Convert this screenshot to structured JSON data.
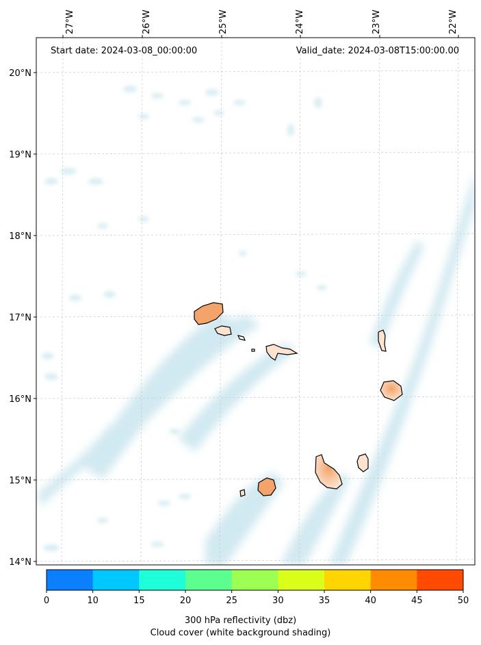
{
  "map": {
    "start_date": "Start date: 2024-03-08_00:00:00",
    "valid_date": "Valid_date: 2024-03-08T15:00:00.00",
    "lon_labels": [
      "27°W",
      "26°W",
      "25°W",
      "24°W",
      "23°W",
      "22°W"
    ],
    "lat_labels": [
      "20°N",
      "19°N",
      "18°N",
      "17°N",
      "16°N",
      "15°N",
      "14°N"
    ],
    "colorbar": {
      "ticks": [
        "0",
        "10",
        "15",
        "20",
        "25",
        "30",
        "35",
        "40",
        "45",
        "50"
      ],
      "colors": [
        "#0a80ff",
        "#00c8ff",
        "#1effd9",
        "#5cff8f",
        "#9dff52",
        "#d9ff1a",
        "#ffd500",
        "#ff8c00",
        "#ff4a00"
      ],
      "label": "300 hPa reflectivity (dbz)",
      "sublabel": "Cloud cover (white background shading)"
    },
    "cloud_color": "#add8e6",
    "land_fill_color": "#f4a46a"
  }
}
